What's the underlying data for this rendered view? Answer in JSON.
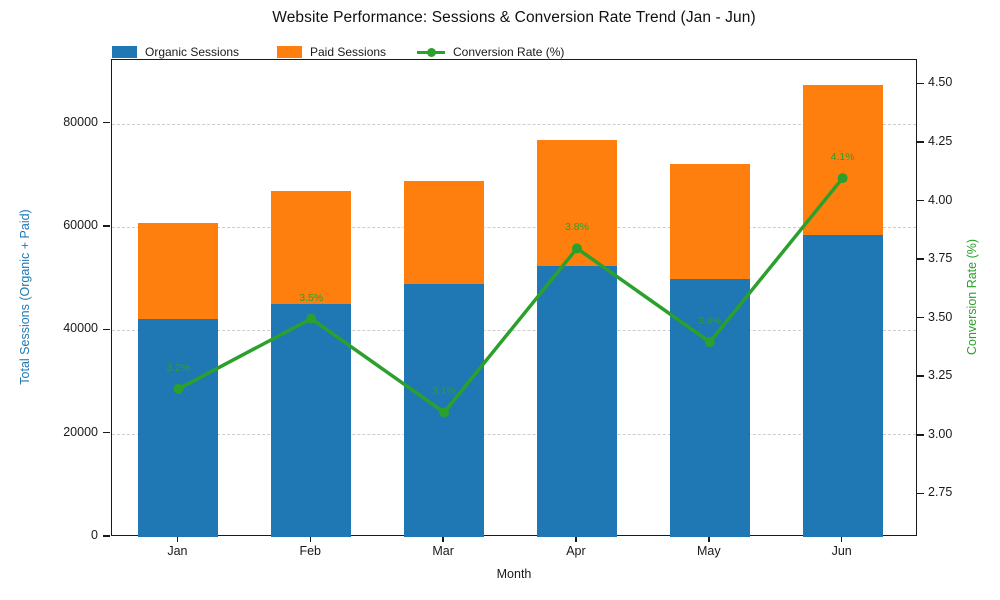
{
  "chart_data": {
    "type": "combo-stacked-bar-line",
    "title": "Website Performance: Sessions & Conversion Rate Trend (Jan - Jun)",
    "xlabel": "Month",
    "ylabel_left": "Total Sessions (Organic + Paid)",
    "ylabel_right": "Conversion Rate (%)",
    "categories": [
      "Jan",
      "Feb",
      "Mar",
      "Apr",
      "May",
      "Jun"
    ],
    "series": [
      {
        "name": "Organic Sessions",
        "type": "bar-stack",
        "color": "#1f77b4",
        "values": [
          42200,
          45100,
          48900,
          52400,
          49900,
          58500
        ]
      },
      {
        "name": "Paid Sessions",
        "type": "bar-stack",
        "color": "#ff7f0e",
        "values": [
          18600,
          21900,
          19900,
          24500,
          22200,
          28900
        ]
      },
      {
        "name": "Conversion Rate (%)",
        "type": "line",
        "axis": "right",
        "color": "#2ca02c",
        "values": [
          3.2,
          3.5,
          3.1,
          3.8,
          3.4,
          4.1
        ],
        "point_labels": [
          "3.2%",
          "3.5%",
          "3.1%",
          "3.8%",
          "3.4%",
          "4.1%"
        ]
      }
    ],
    "left_axis": {
      "min": 0,
      "max": 92300,
      "ticks": [
        {
          "v": 0,
          "label": "0"
        },
        {
          "v": 20000,
          "label": "20000"
        },
        {
          "v": 40000,
          "label": "40000"
        },
        {
          "v": 60000,
          "label": "60000"
        },
        {
          "v": 80000,
          "label": "80000"
        }
      ]
    },
    "right_axis": {
      "min": 2.568,
      "max": 4.604,
      "ticks": [
        {
          "v": 2.75,
          "label": "2.75"
        },
        {
          "v": 3.0,
          "label": "3.00"
        },
        {
          "v": 3.25,
          "label": "3.25"
        },
        {
          "v": 3.5,
          "label": "3.50"
        },
        {
          "v": 3.75,
          "label": "3.75"
        },
        {
          "v": 4.0,
          "label": "4.00"
        },
        {
          "v": 4.25,
          "label": "4.25"
        }
      ]
    },
    "grid": "horizontal-dashed",
    "legend_position": "top-left"
  },
  "colors": {
    "organic": "#1f77b4",
    "paid": "#ff7f0e",
    "conversion": "#2ca02c",
    "grid": "#cdcdcd",
    "axis": "#1a1a1a"
  }
}
